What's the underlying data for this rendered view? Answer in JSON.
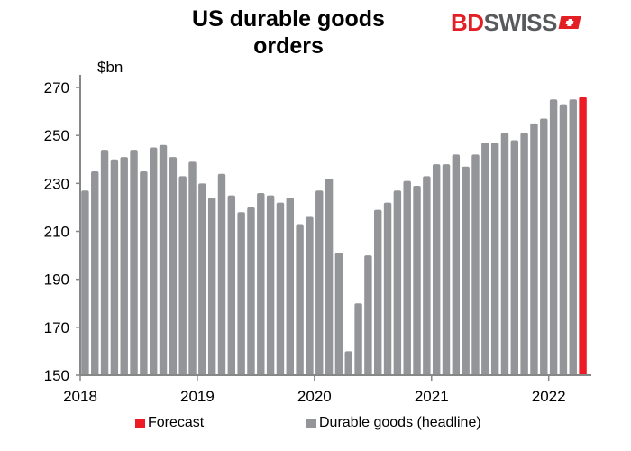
{
  "chart_data": {
    "type": "bar",
    "title": "US durable goods orders",
    "ylabel": "$bn",
    "ylim": [
      150,
      270
    ],
    "yticks": [
      150,
      170,
      190,
      210,
      230,
      250,
      270
    ],
    "xticks": [
      "2018",
      "2019",
      "2020",
      "2021",
      "2022"
    ],
    "start": "2018-01",
    "frequency": "monthly",
    "series": [
      {
        "name": "Durable goods (headline)",
        "color": "#939598",
        "values": [
          227,
          235,
          244,
          240,
          241,
          244,
          235,
          245,
          246,
          241,
          233,
          239,
          230,
          224,
          234,
          225,
          218,
          220,
          226,
          225,
          222,
          224,
          213,
          216,
          227,
          232,
          201,
          160,
          180,
          200,
          219,
          222,
          227,
          231,
          229,
          233,
          238,
          238,
          242,
          237,
          242,
          247,
          247,
          251,
          248,
          251,
          255,
          257,
          265,
          263,
          265
        ]
      },
      {
        "name": "Forecast",
        "color": "#ed1c24",
        "offset": 51,
        "values": [
          266
        ]
      }
    ],
    "legend": "bottom",
    "grid": false
  },
  "logo": {
    "text_red": "BD",
    "text_grey": "SWISS"
  }
}
